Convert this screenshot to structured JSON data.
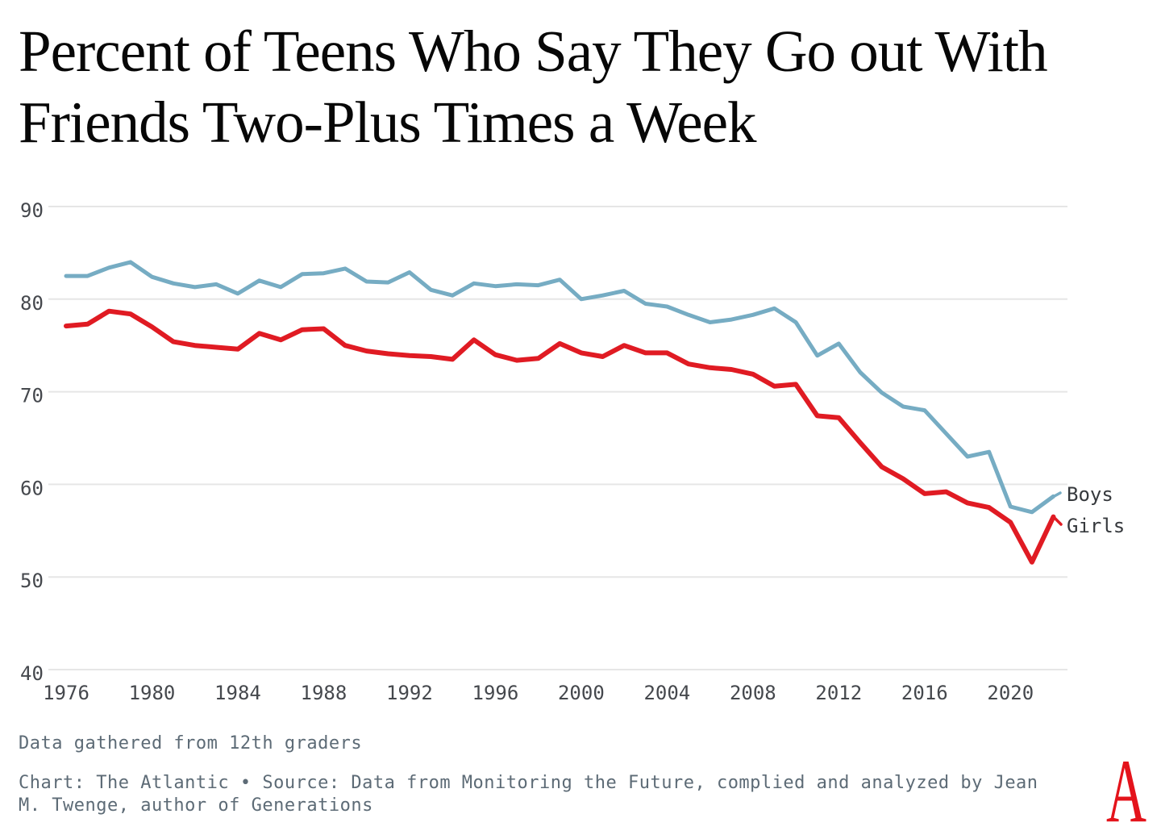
{
  "title": {
    "line1": "Percent of Teens Who Say They Go out With",
    "line2": "Friends Two-Plus Times a Week"
  },
  "legend": {
    "boys": "Boys",
    "girls": "Girls"
  },
  "footer": {
    "note": "Data gathered from 12th graders",
    "source_line1": "Chart: The Atlantic • Source: Data from Monitoring the Future, complied and analyzed by Jean",
    "source_line2": "M. Twenge, author of Generations",
    "logo_letter": "A"
  },
  "colors": {
    "boys_line": "#76acc3",
    "girls_line": "#e01b23",
    "gridline": "#e6e6e6",
    "axis_label": "#45484d",
    "legend_text": "#36393d",
    "footer_text": "#5d6b76",
    "title_text": "#070707",
    "logo_red": "#e4131b"
  },
  "chart_data": {
    "type": "line",
    "title": "Percent of Teens Who Say They Go out With Friends Two-Plus Times a Week",
    "xlabel": "",
    "ylabel": "",
    "ylim": [
      40,
      90
    ],
    "grid": true,
    "legend_position": "right-of-line-ends",
    "x_ticks": [
      1976,
      1980,
      1984,
      1988,
      1992,
      1996,
      2000,
      2004,
      2008,
      2012,
      2016,
      2020
    ],
    "y_ticks": [
      90,
      80,
      70,
      60,
      50,
      40
    ],
    "x": [
      1976,
      1977,
      1978,
      1979,
      1980,
      1981,
      1982,
      1983,
      1984,
      1985,
      1986,
      1987,
      1988,
      1989,
      1990,
      1991,
      1992,
      1993,
      1994,
      1995,
      1996,
      1997,
      1998,
      1999,
      2000,
      2001,
      2002,
      2003,
      2004,
      2005,
      2006,
      2007,
      2008,
      2009,
      2010,
      2011,
      2012,
      2013,
      2014,
      2015,
      2016,
      2017,
      2018,
      2019,
      2020,
      2021,
      2022
    ],
    "series": [
      {
        "name": "Boys",
        "color": "#76acc3",
        "values": [
          82.5,
          82.5,
          83.4,
          84,
          82.4,
          81.7,
          81.3,
          81.6,
          80.6,
          82,
          81.3,
          82.7,
          82.8,
          83.3,
          81.9,
          81.8,
          82.9,
          81,
          80.4,
          81.7,
          81.4,
          81.6,
          81.5,
          82.1,
          80,
          80.4,
          80.9,
          79.5,
          79.2,
          78.3,
          77.5,
          77.8,
          78.3,
          79,
          77.5,
          73.9,
          75.2,
          72.1,
          69.9,
          68.4,
          68,
          65.5,
          63,
          63.5,
          57.6,
          57,
          58.7
        ]
      },
      {
        "name": "Girls",
        "color": "#e01b23",
        "values": [
          77.1,
          77.3,
          78.7,
          78.4,
          77,
          75.4,
          75,
          74.8,
          74.6,
          76.3,
          75.6,
          76.7,
          76.8,
          75,
          74.4,
          74.1,
          73.9,
          73.8,
          73.5,
          75.6,
          74,
          73.4,
          73.6,
          75.2,
          74.2,
          73.8,
          75,
          74.2,
          74.2,
          73,
          72.6,
          72.4,
          71.9,
          70.6,
          70.8,
          67.4,
          67.2,
          64.5,
          61.9,
          60.6,
          59,
          59.2,
          58,
          57.5,
          55.9,
          51.6,
          56.5
        ]
      }
    ]
  }
}
